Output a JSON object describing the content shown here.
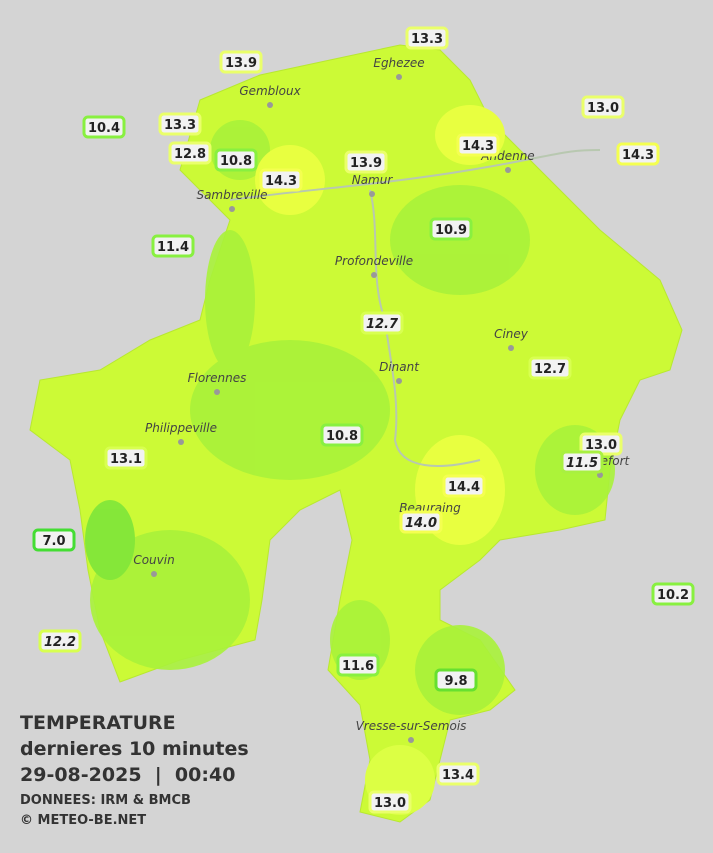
{
  "legend": {
    "title": "TEMPERATURE",
    "subtitle": "dernieres 10 minutes",
    "datetime": "29-08-2025  |  00:40",
    "source": "DONNEES: IRM & BMCB",
    "copyright": "© METEO-BE.NET"
  },
  "cities": [
    "Eghezee",
    "Gembloux",
    "Andenne",
    "Namur",
    "Sambreville",
    "Profondeville",
    "Ciney",
    "Florennes",
    "Dinant",
    "Philippeville",
    "Rochefort",
    "Beauraing",
    "Couvin",
    "Vresse-sur-Semois"
  ],
  "stations": [
    {
      "label": "13.3",
      "border": "#eaff6a"
    },
    {
      "label": "13.9",
      "border": "#eaff6a"
    },
    {
      "label": "10.4",
      "border": "#88f040"
    },
    {
      "label": "13.3",
      "border": "#eaff6a"
    },
    {
      "label": "12.8",
      "border": "#eaff6a"
    },
    {
      "label": "10.8",
      "border": "#88f040"
    },
    {
      "label": "14.3",
      "border": "#f4ff50"
    },
    {
      "label": "13.9",
      "border": "#eaff6a"
    },
    {
      "label": "14.3",
      "border": "#f4ff50"
    },
    {
      "label": "13.0",
      "border": "#eaff6a"
    },
    {
      "label": "14.3",
      "border": "#f4ff50"
    },
    {
      "label": "11.4",
      "border": "#88f040"
    },
    {
      "label": "10.9",
      "border": "#88f040"
    },
    {
      "label": "12.7",
      "border": "#d8ff50",
      "italic": true
    },
    {
      "label": "12.7",
      "border": "#d8ff50"
    },
    {
      "label": "10.8",
      "border": "#88f040"
    },
    {
      "label": "13.0",
      "border": "#eaff6a"
    },
    {
      "label": "11.5",
      "border": "#a8f040",
      "italic": true
    },
    {
      "label": "13.1",
      "border": "#d8ff50"
    },
    {
      "label": "14.4",
      "border": "#f4ff50"
    },
    {
      "label": "14.0",
      "border": "#f4ff50",
      "italic": true
    },
    {
      "label": "7.0",
      "border": "#44dd33"
    },
    {
      "label": "10.2",
      "border": "#88f040"
    },
    {
      "label": "12.2",
      "border": "#d8ff50",
      "italic": true
    },
    {
      "label": "11.6",
      "border": "#88f040"
    },
    {
      "label": "9.8",
      "border": "#66e030"
    },
    {
      "label": "13.4",
      "border": "#eaff6a"
    },
    {
      "label": "13.0",
      "border": "#eaff6a"
    }
  ]
}
